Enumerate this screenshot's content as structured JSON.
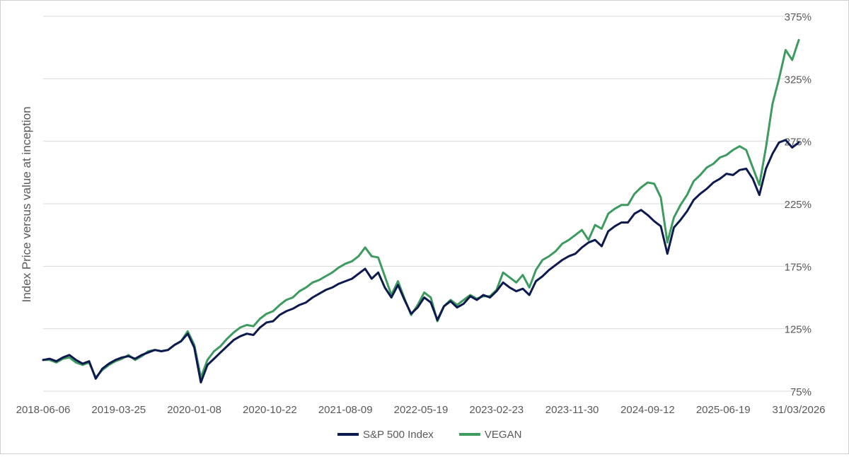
{
  "chart_data": {
    "type": "line",
    "ylabel": "Index Price versus value at inception",
    "xlabel": "",
    "y_axis_side": "right",
    "ylim": [
      75,
      375
    ],
    "yticks": [
      75,
      125,
      175,
      225,
      275,
      325,
      375
    ],
    "ytick_suffix": "%",
    "x_ticks": [
      "2018-06-06",
      "2019-03-25",
      "2020-01-08",
      "2020-10-22",
      "2021-08-09",
      "2022-05-19",
      "2023-02-23",
      "2023-11-30",
      "2024-09-12",
      "2025-06-19",
      "31/03/2026"
    ],
    "grid": true,
    "legend_position": "bottom",
    "series": [
      {
        "name": "S&P 500 Index",
        "color": "#0d1a4f",
        "values": [
          100,
          101,
          99,
          102,
          104,
          100,
          97,
          99,
          85,
          93,
          97,
          100,
          102,
          103,
          101,
          104,
          106,
          108,
          107,
          108,
          112,
          115,
          121,
          110,
          82,
          96,
          101,
          106,
          111,
          116,
          119,
          121,
          120,
          126,
          130,
          131,
          136,
          139,
          141,
          144,
          146,
          150,
          153,
          156,
          158,
          161,
          163,
          165,
          169,
          173,
          165,
          170,
          158,
          150,
          160,
          148,
          137,
          142,
          150,
          146,
          132,
          143,
          147,
          142,
          145,
          151,
          148,
          152,
          150,
          155,
          162,
          158,
          155,
          157,
          152,
          163,
          167,
          172,
          176,
          180,
          183,
          185,
          190,
          194,
          196,
          191,
          203,
          207,
          210,
          210,
          217,
          220,
          216,
          211,
          207,
          185,
          206,
          212,
          219,
          228,
          233,
          237,
          242,
          245,
          249,
          248,
          252,
          253,
          245,
          232,
          253,
          265,
          274,
          276,
          270,
          274
        ]
      },
      {
        "name": "VEGAN",
        "color": "#3e9b5f",
        "values": [
          100,
          100,
          98,
          101,
          102,
          98,
          96,
          98,
          86,
          92,
          96,
          99,
          101,
          104,
          100,
          103,
          107,
          108,
          107,
          108,
          112,
          115,
          123,
          112,
          86,
          100,
          107,
          111,
          117,
          122,
          126,
          128,
          127,
          133,
          137,
          139,
          144,
          148,
          150,
          155,
          158,
          162,
          164,
          167,
          170,
          174,
          177,
          179,
          183,
          190,
          183,
          182,
          167,
          152,
          163,
          149,
          136,
          144,
          154,
          150,
          131,
          143,
          148,
          144,
          148,
          152,
          149,
          151,
          151,
          156,
          170,
          166,
          162,
          168,
          158,
          172,
          180,
          183,
          187,
          193,
          196,
          200,
          204,
          196,
          208,
          205,
          217,
          221,
          224,
          224,
          233,
          238,
          242,
          241,
          230,
          194,
          214,
          224,
          232,
          243,
          248,
          254,
          257,
          262,
          264,
          268,
          271,
          268,
          254,
          240,
          270,
          305,
          325,
          348,
          340,
          356
        ]
      }
    ]
  }
}
